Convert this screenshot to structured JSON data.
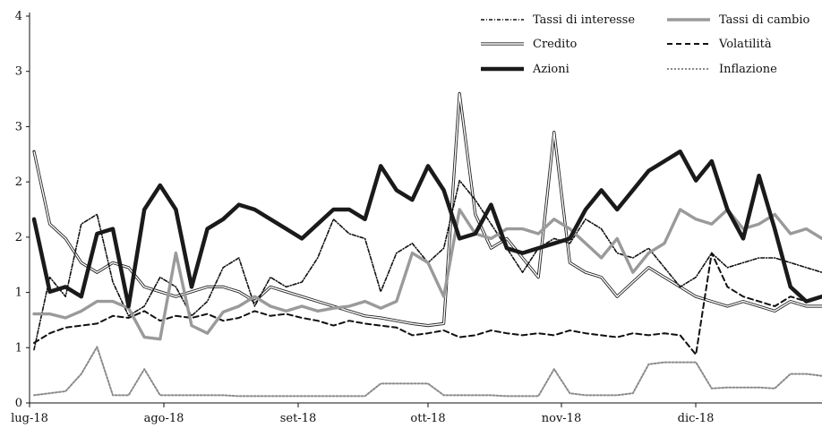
{
  "chart_data": {
    "type": "line",
    "title": "",
    "xlabel": "",
    "ylabel": "",
    "x_ticks": [
      "lug-18",
      "ago-18",
      "set-18",
      "ott-18",
      "nov-18",
      "dic-18"
    ],
    "y_ticks": [
      "0",
      "1",
      "1",
      "2",
      "2",
      "3",
      "3",
      "4"
    ],
    "ylim": [
      0,
      4
    ],
    "grid": false,
    "legend_position": "top-right",
    "series": [
      {
        "name": "Tassi di interesse",
        "style": "dash-dot",
        "color": "#111111",
        "values": [
          0.55,
          1.3,
          1.1,
          1.85,
          1.95,
          1.25,
          0.9,
          1.0,
          1.3,
          1.2,
          0.9,
          1.05,
          1.4,
          1.5,
          1.0,
          1.3,
          1.2,
          1.25,
          1.5,
          1.9,
          1.75,
          1.7,
          1.15,
          1.55,
          1.65,
          1.45,
          1.6,
          2.3,
          2.1,
          1.85,
          1.6,
          1.35,
          1.6,
          1.7,
          1.65,
          1.9,
          1.8,
          1.55,
          1.5,
          1.6,
          1.4,
          1.2,
          1.3,
          1.55,
          1.4,
          1.45,
          1.5,
          1.5,
          1.45,
          1.4,
          1.35
        ]
      },
      {
        "name": "Tassi di cambio",
        "style": "solid-thick-gray",
        "color": "#9a9a9a",
        "values": [
          0.92,
          0.92,
          0.88,
          0.95,
          1.05,
          1.05,
          0.98,
          0.68,
          0.66,
          1.55,
          0.8,
          0.72,
          0.94,
          1.0,
          1.1,
          1.0,
          0.95,
          1.0,
          0.95,
          0.98,
          1.0,
          1.05,
          0.98,
          1.05,
          1.55,
          1.45,
          1.1,
          2.0,
          1.75,
          1.7,
          1.8,
          1.8,
          1.75,
          1.9,
          1.8,
          1.65,
          1.5,
          1.7,
          1.35,
          1.55,
          1.65,
          2.0,
          1.9,
          1.85,
          2.0,
          1.8,
          1.85,
          1.95,
          1.75,
          1.8,
          1.7
        ]
      },
      {
        "name": "Credito",
        "style": "double-outline",
        "color": "#222222",
        "values": [
          2.6,
          1.85,
          1.7,
          1.45,
          1.35,
          1.45,
          1.4,
          1.2,
          1.15,
          1.1,
          1.15,
          1.2,
          1.2,
          1.15,
          1.05,
          1.2,
          1.15,
          1.1,
          1.05,
          1.0,
          0.95,
          0.9,
          0.88,
          0.85,
          0.82,
          0.8,
          0.82,
          3.2,
          1.95,
          1.6,
          1.7,
          1.5,
          1.3,
          2.8,
          1.45,
          1.35,
          1.3,
          1.1,
          1.25,
          1.4,
          1.3,
          1.2,
          1.1,
          1.05,
          1.0,
          1.05,
          1.0,
          0.95,
          1.05,
          1.0,
          1.0
        ]
      },
      {
        "name": "Volatilità",
        "style": "dashed",
        "color": "#111111",
        "values": [
          0.62,
          0.72,
          0.78,
          0.8,
          0.82,
          0.9,
          0.88,
          0.95,
          0.85,
          0.9,
          0.88,
          0.92,
          0.85,
          0.88,
          0.95,
          0.9,
          0.92,
          0.88,
          0.85,
          0.8,
          0.85,
          0.82,
          0.8,
          0.78,
          0.7,
          0.72,
          0.75,
          0.68,
          0.7,
          0.75,
          0.72,
          0.7,
          0.72,
          0.7,
          0.75,
          0.72,
          0.7,
          0.68,
          0.72,
          0.7,
          0.72,
          0.7,
          0.5,
          1.55,
          1.2,
          1.1,
          1.05,
          1.0,
          1.1,
          1.05,
          1.1
        ]
      },
      {
        "name": "Azioni",
        "style": "solid-thick-black",
        "color": "#1a1a1a",
        "values": [
          1.9,
          1.15,
          1.2,
          1.1,
          1.75,
          1.8,
          1.0,
          2.0,
          2.25,
          2.0,
          1.2,
          1.8,
          1.9,
          2.05,
          2.0,
          1.9,
          1.8,
          1.7,
          1.85,
          2.0,
          2.0,
          1.9,
          2.45,
          2.2,
          2.1,
          2.45,
          2.2,
          1.7,
          1.75,
          2.05,
          1.6,
          1.55,
          1.6,
          1.65,
          1.7,
          2.0,
          2.2,
          2.0,
          2.2,
          2.4,
          2.5,
          2.6,
          2.3,
          2.5,
          2.0,
          1.7,
          2.35,
          1.8,
          1.2,
          1.05,
          1.1
        ]
      },
      {
        "name": "Inflazione",
        "style": "dotted-gray",
        "color": "#8a8a8a",
        "values": [
          0.08,
          0.1,
          0.12,
          0.3,
          0.58,
          0.08,
          0.08,
          0.35,
          0.08,
          0.08,
          0.08,
          0.08,
          0.08,
          0.07,
          0.07,
          0.07,
          0.07,
          0.07,
          0.07,
          0.07,
          0.07,
          0.07,
          0.2,
          0.2,
          0.2,
          0.2,
          0.08,
          0.08,
          0.08,
          0.08,
          0.07,
          0.07,
          0.07,
          0.35,
          0.1,
          0.08,
          0.08,
          0.08,
          0.1,
          0.4,
          0.42,
          0.42,
          0.42,
          0.15,
          0.16,
          0.16,
          0.16,
          0.15,
          0.3,
          0.3,
          0.28
        ]
      }
    ]
  }
}
